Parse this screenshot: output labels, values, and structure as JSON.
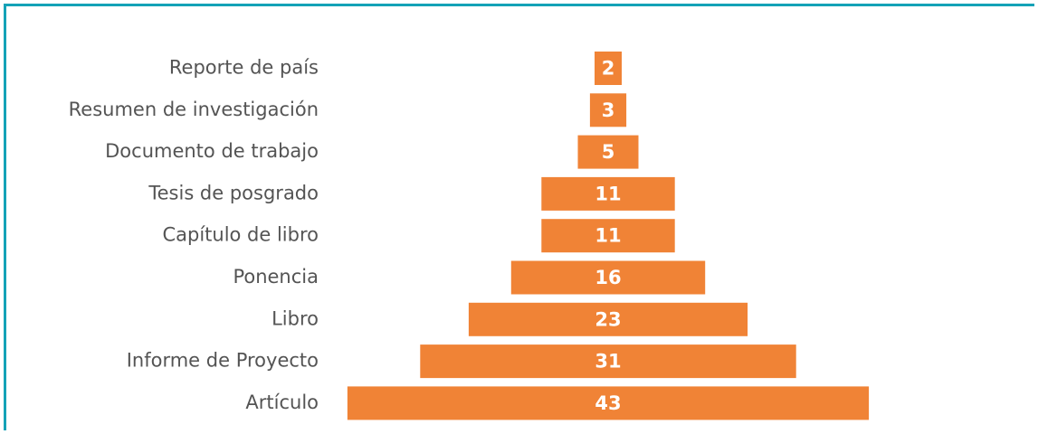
{
  "chart_data": {
    "type": "bar",
    "orientation": "horizontal",
    "style": "centered-pyramid",
    "categories": [
      "Reporte de país",
      "Resumen de investigación",
      "Documento de trabajo",
      "Tesis de posgrado",
      "Capítulo de libro",
      "Ponencia",
      "Libro",
      "Informe de Proyecto",
      "Artículo"
    ],
    "values": [
      2,
      3,
      5,
      11,
      11,
      16,
      23,
      31,
      43
    ],
    "value_labels": [
      "2",
      "3",
      "5",
      "11",
      "11",
      "16",
      "23",
      "31",
      "43"
    ],
    "colors": {
      "bar": "#f08336",
      "frame": "#14a2b7",
      "category_text": "#545454",
      "value_text": "#ffffff"
    },
    "grid": false,
    "legend": "none"
  }
}
